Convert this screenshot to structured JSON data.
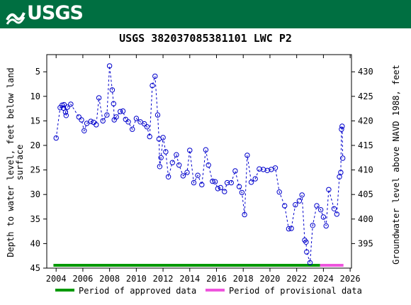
{
  "header": {
    "logo_text": "USGS",
    "colors": {
      "banner": "#006f41",
      "logo_text": "#ffffff"
    }
  },
  "chart_data": {
    "type": "scatter",
    "title": "USGS 382037085381101 LWC  P2",
    "xlabel": "",
    "ylabel": "Depth to water level, feet below land surface",
    "ylabel_lines": [
      "Depth to water level, feet below land",
      "surface"
    ],
    "y2label": "Groundwater level above NAVD 1988, feet",
    "xlim": [
      2003.3,
      2026.1
    ],
    "ylim": [
      45,
      1.5
    ],
    "y_inverted": true,
    "y2lim": [
      390,
      433.5
    ],
    "x_ticks": [
      2004,
      2006,
      2008,
      2010,
      2012,
      2014,
      2016,
      2018,
      2020,
      2022,
      2024,
      2026
    ],
    "y_ticks": [
      5,
      10,
      15,
      20,
      25,
      30,
      35,
      40,
      45
    ],
    "y2_ticks": [
      395,
      400,
      405,
      410,
      415,
      420,
      425,
      430
    ],
    "grid": false,
    "series": [
      {
        "marker": "open-circle",
        "line": "dashed",
        "color": "#0000cc",
        "x": [
          2004.0,
          2004.3,
          2004.45,
          2004.55,
          2004.6,
          2004.7,
          2004.75,
          2004.85,
          2005.1,
          2005.7,
          2005.9,
          2006.1,
          2006.3,
          2006.6,
          2006.8,
          2007.0,
          2007.2,
          2007.5,
          2007.8,
          2008.0,
          2008.2,
          2008.3,
          2008.35,
          2008.5,
          2008.8,
          2009.0,
          2009.2,
          2009.4,
          2009.7,
          2010.0,
          2010.3,
          2010.6,
          2010.8,
          2011.0,
          2011.2,
          2011.4,
          2011.6,
          2011.7,
          2011.75,
          2011.85,
          2012.0,
          2012.2,
          2012.4,
          2012.7,
          2013.0,
          2013.2,
          2013.5,
          2013.8,
          2014.0,
          2014.3,
          2014.6,
          2014.9,
          2015.2,
          2015.4,
          2015.7,
          2015.9,
          2016.1,
          2016.3,
          2016.6,
          2016.8,
          2017.1,
          2017.4,
          2017.7,
          2017.9,
          2018.1,
          2018.3,
          2018.6,
          2018.9,
          2019.2,
          2019.5,
          2019.8,
          2020.1,
          2020.4,
          2020.7,
          2021.1,
          2021.4,
          2021.6,
          2021.9,
          2022.2,
          2022.4,
          2022.6,
          2022.7,
          2022.75,
          2023.0,
          2023.2,
          2023.5,
          2023.8,
          2024.0,
          2024.2,
          2024.4,
          2024.8,
          2025.0,
          2025.2,
          2025.3,
          2025.35,
          2025.4,
          2025.45
        ],
        "y": [
          18.5,
          12.3,
          11.8,
          12.4,
          11.7,
          13.2,
          13.9,
          12.2,
          11.6,
          14.2,
          14.8,
          17.0,
          15.5,
          15.1,
          15.3,
          15.8,
          10.3,
          15.0,
          13.8,
          3.8,
          8.7,
          11.5,
          14.8,
          14.2,
          13.1,
          13.0,
          14.7,
          15.2,
          16.7,
          14.5,
          15.2,
          15.6,
          16.2,
          18.2,
          7.8,
          5.9,
          13.8,
          18.7,
          24.3,
          22.5,
          18.4,
          21.3,
          26.4,
          23.5,
          21.9,
          24.0,
          26.2,
          25.5,
          21.0,
          27.6,
          26.1,
          28.0,
          20.9,
          24.0,
          27.3,
          27.4,
          28.8,
          28.6,
          29.4,
          27.6,
          27.6,
          25.2,
          28.4,
          29.6,
          34.1,
          22.0,
          27.5,
          26.8,
          24.8,
          24.9,
          25.1,
          24.9,
          24.6,
          29.5,
          32.3,
          37.0,
          36.9,
          32.1,
          31.3,
          30.1,
          39.3,
          39.7,
          41.7,
          43.9,
          36.3,
          32.3,
          33.1,
          34.6,
          36.4,
          29.0,
          32.9,
          34.0,
          26.4,
          25.5,
          16.7,
          16.1,
          22.6
        ]
      }
    ],
    "periods": [
      {
        "label": "Period of approved data",
        "start": 2003.8,
        "end": 2023.75,
        "color": "#009900"
      },
      {
        "label": "Period of provisional data",
        "start": 2023.75,
        "end": 2025.5,
        "color": "#ee55dd"
      }
    ],
    "legend_placement": "bottom"
  }
}
